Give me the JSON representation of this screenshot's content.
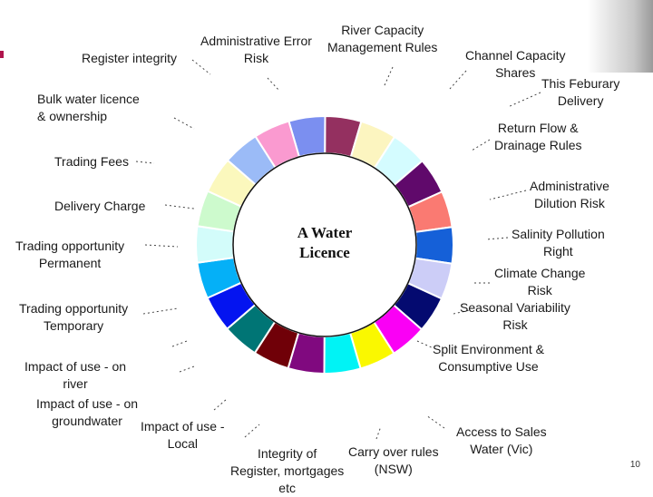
{
  "diagram": {
    "center_label": "A Water\nLicence",
    "segment_colors": [
      "#7b8ff0",
      "#943060",
      "#fcf5c0",
      "#d4fcff",
      "#60096b",
      "#fa7a72",
      "#1560d8",
      "#cccdf7",
      "#040a70",
      "#fa00f5",
      "#faf800",
      "#00f3f5",
      "#80097f",
      "#700008",
      "#007575",
      "#0414f0",
      "#05b0f7",
      "#d3fcfa",
      "#cdfacd",
      "#fbf8bd",
      "#9bbbf7",
      "#fa9ad0"
    ],
    "labels": [
      {
        "id": "register-integrity",
        "text": "Register integrity"
      },
      {
        "id": "administrative-error-risk",
        "text": "Administrative Error\nRisk"
      },
      {
        "id": "river-capacity-management-rules",
        "text": "River Capacity\nManagement Rules"
      },
      {
        "id": "channel-capacity-shares",
        "text": "Channel Capacity\nShares"
      },
      {
        "id": "this-feburary-delivery",
        "text": "This Feburary\nDelivery"
      },
      {
        "id": "bulk-water-licence-ownership",
        "text": "Bulk water licence\n& ownership"
      },
      {
        "id": "return-flow-drainage-rules",
        "text": "Return Flow &\nDrainage Rules"
      },
      {
        "id": "trading-fees",
        "text": "Trading Fees"
      },
      {
        "id": "administrative-dilution-risk",
        "text": "Administrative\nDilution Risk"
      },
      {
        "id": "delivery-charge",
        "text": "Delivery Charge"
      },
      {
        "id": "salinity-pollution-right",
        "text": "Salinity Pollution\nRight"
      },
      {
        "id": "trading-opportunity-permanent",
        "text": "Trading opportunity\nPermanent"
      },
      {
        "id": "climate-change-risk",
        "text": "Climate Change\nRisk"
      },
      {
        "id": "trading-opportunity-temporary",
        "text": "Trading opportunity\nTemporary"
      },
      {
        "id": "seasonal-variability-risk",
        "text": "Seasonal Variability\nRisk"
      },
      {
        "id": "split-environment-consumptive-use",
        "text": "Split Environment &\nConsumptive Use"
      },
      {
        "id": "impact-of-use-on-river",
        "text": "Impact of use - on\nriver"
      },
      {
        "id": "impact-of-use-on-groundwater",
        "text": "Impact of use - on\ngroundwater"
      },
      {
        "id": "impact-of-use-local",
        "text": "Impact of use -\nLocal"
      },
      {
        "id": "integrity-of-register-mortgages",
        "text": "Integrity of\nRegister, mortgages\netc"
      },
      {
        "id": "carry-over-rules-nsw",
        "text": "Carry over rules\n(NSW)"
      },
      {
        "id": "access-to-sales-water-vic",
        "text": "Access to Sales\nWater (Vic)"
      }
    ],
    "slide_number": "10"
  }
}
